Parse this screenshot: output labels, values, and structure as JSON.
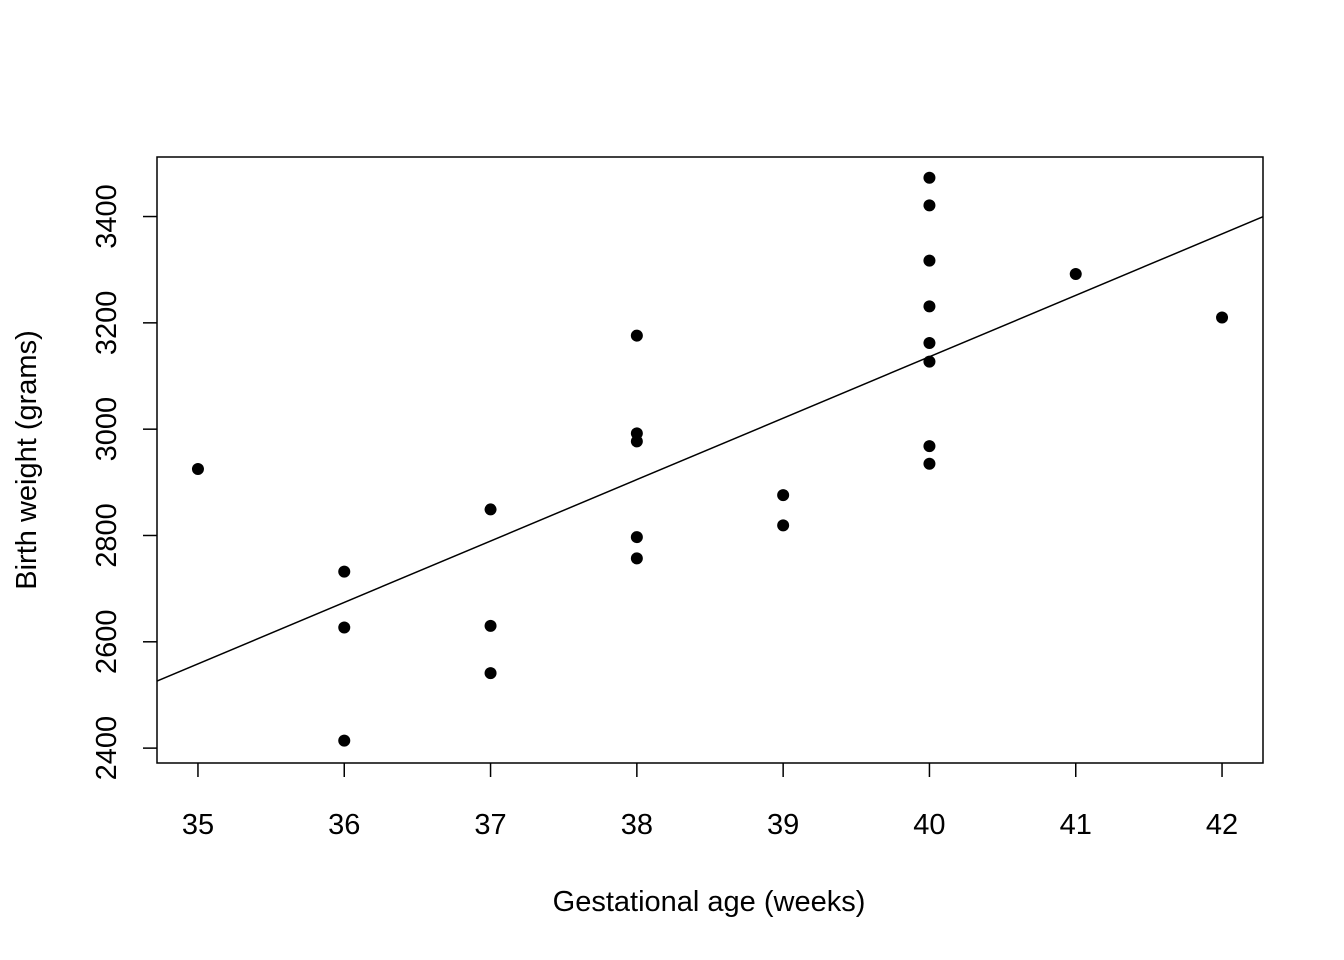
{
  "chart_data": {
    "type": "scatter",
    "title": "",
    "xlabel": "Gestational age (weeks)",
    "ylabel": "Birth weight (grams)",
    "xlim": [
      34.72,
      42.28
    ],
    "ylim": [
      2372,
      3512
    ],
    "x_ticks": [
      35,
      36,
      37,
      38,
      39,
      40,
      41,
      42
    ],
    "y_ticks": [
      2400,
      2600,
      2800,
      3000,
      3200,
      3400
    ],
    "grid": false,
    "legend": "none",
    "points": [
      {
        "x": 35,
        "y": 2925
      },
      {
        "x": 36,
        "y": 2732
      },
      {
        "x": 36,
        "y": 2627
      },
      {
        "x": 36,
        "y": 2414
      },
      {
        "x": 37,
        "y": 2849
      },
      {
        "x": 37,
        "y": 2630
      },
      {
        "x": 37,
        "y": 2541
      },
      {
        "x": 38,
        "y": 3176
      },
      {
        "x": 38,
        "y": 2992
      },
      {
        "x": 38,
        "y": 2977
      },
      {
        "x": 38,
        "y": 2797
      },
      {
        "x": 38,
        "y": 2757
      },
      {
        "x": 39,
        "y": 2876
      },
      {
        "x": 39,
        "y": 2819
      },
      {
        "x": 40,
        "y": 3473
      },
      {
        "x": 40,
        "y": 3421
      },
      {
        "x": 40,
        "y": 3317
      },
      {
        "x": 40,
        "y": 3231
      },
      {
        "x": 40,
        "y": 3162
      },
      {
        "x": 40,
        "y": 3127
      },
      {
        "x": 40,
        "y": 2968
      },
      {
        "x": 40,
        "y": 2935
      },
      {
        "x": 41,
        "y": 3292
      },
      {
        "x": 42,
        "y": 3210
      }
    ],
    "fit_line": {
      "slope": 115.53,
      "intercept": -1485.0
    },
    "colors": {
      "points": "#000000",
      "line": "#000000",
      "axis": "#000000",
      "background": "#ffffff"
    }
  }
}
